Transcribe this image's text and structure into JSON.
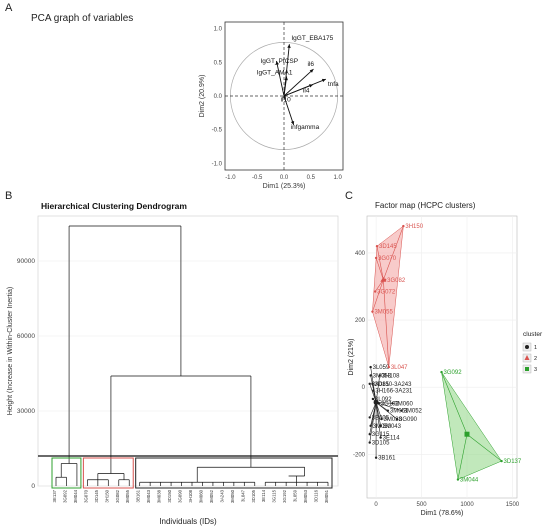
{
  "panels": {
    "a": {
      "label": "A",
      "title": "PCA graph of variables",
      "xlabel": "Dim1 (25.3%)",
      "ylabel": "Dim2 (20.9%)",
      "xticks": [
        "-1.0",
        "-0.5",
        "0.0",
        "0.5",
        "1.0"
      ],
      "yticks": [
        "1.0",
        "0.5",
        "0.0",
        "-0.5",
        "-1.0"
      ]
    },
    "b": {
      "label": "B",
      "title": "Hierarchical Clustering Dendrogram",
      "xlabel": "Individuals (IDs)",
      "ylabel": "Height (Increase in Within-Cluster Inertia)",
      "yticks": [
        "90000",
        "60000",
        "30000",
        "0"
      ]
    },
    "c": {
      "label": "C",
      "title": "Factor map (HCPC clusters)",
      "xlabel": "Dim1 (78.6%)",
      "ylabel": "Dim2 (21%)",
      "xticks": [
        "0",
        "500",
        "1000",
        "1500"
      ],
      "yticks": [
        "400",
        "200",
        "0",
        "-200"
      ],
      "legend_title": "cluster",
      "legend_items": [
        "1",
        "2",
        "3"
      ]
    }
  },
  "colors": {
    "cluster1": "#222222",
    "cluster2": "#d9534f",
    "cluster3": "#2ca02c",
    "hull2": "#f4a9a6",
    "hull3": "#98d98e"
  },
  "chart_data": [
    {
      "type": "scatter",
      "subtype": "pca-variable-arrows",
      "title": "PCA graph of variables",
      "xlabel": "Dim1 (25.3%)",
      "ylabel": "Dim2 (20.9%)",
      "xlim": [
        -1.1,
        1.1
      ],
      "ylim": [
        -1.1,
        1.1
      ],
      "series": [
        {
          "name": "IgGT_EBA175",
          "x": 0.1,
          "y": 0.77
        },
        {
          "name": "IgGT_PfCSP",
          "x": -0.14,
          "y": 0.52
        },
        {
          "name": "IgGT_AMA1",
          "x": 0.05,
          "y": 0.29
        },
        {
          "name": "il6",
          "x": 0.55,
          "y": 0.4
        },
        {
          "name": "il4",
          "x": 0.54,
          "y": 0.17
        },
        {
          "name": "tnfa",
          "x": 0.78,
          "y": 0.25
        },
        {
          "name": "il10",
          "x": 0.03,
          "y": -0.05
        },
        {
          "name": "infgamma",
          "x": 0.18,
          "y": -0.43
        }
      ]
    },
    {
      "type": "dendrogram",
      "title": "Hierarchical Clustering Dendrogram",
      "xlabel": "Individuals (IDs)",
      "ylabel": "Height (Increase in Within-Cluster Inertia)",
      "ylim": [
        0,
        108000
      ],
      "cut_height": 12000,
      "leaves": [
        {
          "id": "3E137",
          "cluster": 3
        },
        {
          "id": "3G092",
          "cluster": 3
        },
        {
          "id": "3M044",
          "cluster": 3
        },
        {
          "id": "3G070",
          "cluster": 2
        },
        {
          "id": "3D145",
          "cluster": 2
        },
        {
          "id": "3H150",
          "cluster": 2
        },
        {
          "id": "3G082",
          "cluster": 2
        },
        {
          "id": "3M055",
          "cluster": 2
        },
        {
          "id": "3B161",
          "cluster": 1
        },
        {
          "id": "3M043",
          "cluster": 1
        },
        {
          "id": "3M038",
          "cluster": 1
        },
        {
          "id": "3D150",
          "cluster": 1
        },
        {
          "id": "3G090",
          "cluster": 1
        },
        {
          "id": "3H108",
          "cluster": 1
        },
        {
          "id": "3M060",
          "cluster": 1
        },
        {
          "id": "3M052",
          "cluster": 1
        },
        {
          "id": "3A243",
          "cluster": 1
        },
        {
          "id": "3M050",
          "cluster": 1
        },
        {
          "id": "3L047",
          "cluster": 1
        },
        {
          "id": "3D105",
          "cluster": 1
        },
        {
          "id": "3E114",
          "cluster": 1
        },
        {
          "id": "3G115",
          "cluster": 1
        },
        {
          "id": "3G192",
          "cluster": 1
        },
        {
          "id": "3L059",
          "cluster": 1
        },
        {
          "id": "3M053",
          "cluster": 1
        },
        {
          "id": "3D116",
          "cluster": 1
        },
        {
          "id": "3M051",
          "cluster": 1
        }
      ],
      "merge_heights": {
        "root": 104000,
        "clusters_1_2": 44000,
        "cluster3": 9000,
        "cluster2": 5000,
        "cluster1": 7500
      }
    },
    {
      "type": "scatter",
      "title": "Factor map (HCPC clusters)",
      "xlabel": "Dim1 (78.6%)",
      "ylabel": "Dim2 (21%)",
      "xlim": [
        -100,
        1550
      ],
      "ylim": [
        -330,
        510
      ],
      "legend": "right",
      "series": [
        {
          "name": "1",
          "points": [
            {
              "label": "3L059",
              "x": -60,
              "y": 60
            },
            {
              "label": "3M053",
              "x": -60,
              "y": 35
            },
            {
              "label": "3A081",
              "x": -70,
              "y": 10
            },
            {
              "label": "3H108",
              "x": 40,
              "y": 35
            },
            {
              "label": "3D150-3A243",
              "x": -40,
              "y": 10
            },
            {
              "label": "3H166-3A231",
              "x": -30,
              "y": -10
            },
            {
              "label": "3L092",
              "x": -35,
              "y": -35
            },
            {
              "label": "3G192",
              "x": 30,
              "y": -48
            },
            {
              "label": "3M060",
              "x": 180,
              "y": -48
            },
            {
              "label": "3M051",
              "x": 130,
              "y": -70
            },
            {
              "label": "3M052",
              "x": 280,
              "y": -70
            },
            {
              "label": "3M038",
              "x": 60,
              "y": -95
            },
            {
              "label": "3G090",
              "x": 230,
              "y": -95
            },
            {
              "label": "3B005",
              "x": -70,
              "y": -90
            },
            {
              "label": "3M050",
              "x": -60,
              "y": -115
            },
            {
              "label": "3M043",
              "x": 50,
              "y": -115
            },
            {
              "label": "3G115",
              "x": -70,
              "y": -140
            },
            {
              "label": "3E114",
              "x": 50,
              "y": -150
            },
            {
              "label": "3D105",
              "x": -70,
              "y": -165
            },
            {
              "label": "3B161",
              "x": 0,
              "y": -210
            }
          ],
          "centroid": {
            "x": 0,
            "y": -45
          }
        },
        {
          "name": "2",
          "points": [
            {
              "label": "3H150",
              "x": 300,
              "y": 480
            },
            {
              "label": "3D145",
              "x": 10,
              "y": 420
            },
            {
              "label": "3G070",
              "x": 0,
              "y": 385
            },
            {
              "label": "3G082",
              "x": 100,
              "y": 320
            },
            {
              "label": "3G072",
              "x": -10,
              "y": 285
            },
            {
              "label": "3M055",
              "x": -40,
              "y": 225
            },
            {
              "label": "3L047",
              "x": 140,
              "y": 60
            }
          ],
          "centroid": {
            "x": 80,
            "y": 320
          }
        },
        {
          "name": "3",
          "points": [
            {
              "label": "3G092",
              "x": 720,
              "y": 45
            },
            {
              "label": "3D137",
              "x": 1380,
              "y": -220
            },
            {
              "label": "3M044",
              "x": 900,
              "y": -275
            }
          ],
          "centroid": {
            "x": 1000,
            "y": -140
          }
        }
      ]
    }
  ]
}
